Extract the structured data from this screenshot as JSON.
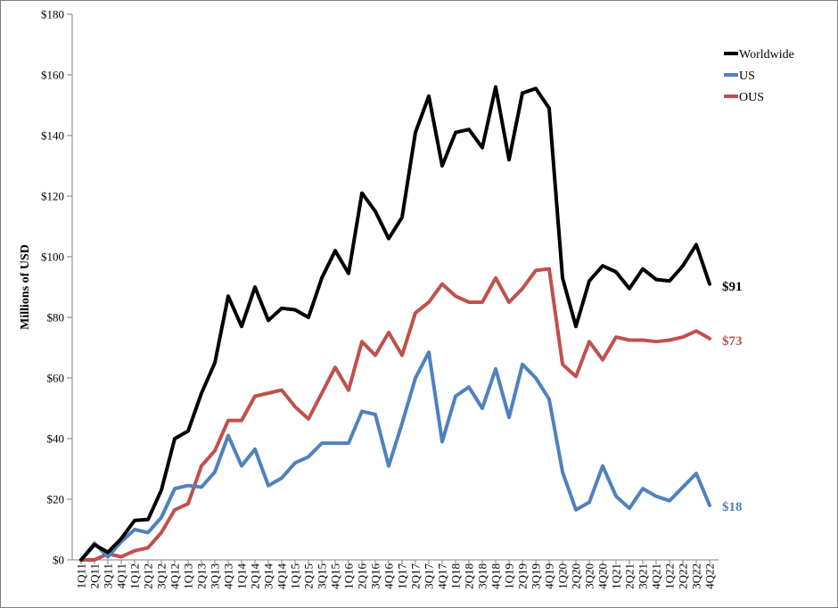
{
  "chart_data": {
    "type": "line",
    "title": "",
    "xlabel": "",
    "ylabel": "Millions of USD",
    "ylim": [
      0,
      180
    ],
    "ytick_step": 20,
    "ytick_prefix": "$",
    "grid": false,
    "legend": "right",
    "categories": [
      "1Q11",
      "2Q11",
      "3Q11",
      "4Q11",
      "1Q12",
      "2Q12",
      "3Q12",
      "4Q12",
      "1Q13",
      "2Q13",
      "3Q13",
      "4Q13",
      "1Q14",
      "2Q14",
      "3Q14",
      "4Q14",
      "1Q15",
      "2Q15",
      "3Q15",
      "4Q15",
      "1Q16",
      "2Q16",
      "3Q16",
      "4Q16",
      "1Q17",
      "2Q17",
      "3Q17",
      "4Q17",
      "1Q18",
      "2Q18",
      "3Q18",
      "4Q18",
      "1Q19",
      "2Q19",
      "3Q19",
      "4Q19",
      "1Q20",
      "2Q20",
      "3Q20",
      "4Q20",
      "1Q21",
      "2Q21",
      "3Q21",
      "4Q21",
      "1Q22",
      "2Q22",
      "3Q22",
      "4Q22"
    ],
    "series": [
      {
        "name": "Worldwide",
        "color": "#000000",
        "values": [
          0,
          5,
          2.5,
          7,
          13,
          13.3,
          23,
          40,
          42.5,
          55,
          65,
          87,
          77,
          90,
          79,
          83,
          82.5,
          80,
          93,
          102,
          94.5,
          121,
          115,
          106,
          113,
          141,
          153,
          130,
          141,
          142,
          136,
          156,
          132,
          154,
          155.5,
          149,
          93,
          77,
          92,
          97,
          95,
          89.5,
          96,
          92.5,
          92,
          97,
          104,
          91
        ]
      },
      {
        "name": "US",
        "color": "#4f81bd",
        "values": [
          0,
          5.5,
          1,
          6,
          10,
          9,
          14,
          23.5,
          24.5,
          24,
          29,
          41,
          31,
          36.5,
          24.5,
          27,
          32,
          34,
          38.5,
          38.5,
          38.5,
          49,
          48,
          31,
          45,
          60,
          68.5,
          39,
          54,
          57,
          50,
          63,
          47,
          64.5,
          60,
          53,
          29,
          16.5,
          19,
          31,
          21,
          17,
          23.5,
          21,
          19.5,
          24,
          28.5,
          18
        ]
      },
      {
        "name": "OUS",
        "color": "#c0504d",
        "values": [
          0,
          0,
          2,
          1,
          3,
          4,
          9,
          16.5,
          18.5,
          31,
          36,
          46,
          46,
          54,
          55,
          56,
          50.5,
          46.5,
          55,
          63.5,
          56,
          72,
          67.5,
          75,
          67.5,
          81.5,
          85,
          91,
          87,
          85,
          85,
          93,
          85,
          89.5,
          95.5,
          96,
          64.5,
          60.5,
          72,
          66,
          73.5,
          72.5,
          72.5,
          72,
          72.5,
          73.5,
          75.5,
          73
        ]
      }
    ],
    "end_labels": [
      "$91",
      "$18",
      "$73"
    ]
  }
}
